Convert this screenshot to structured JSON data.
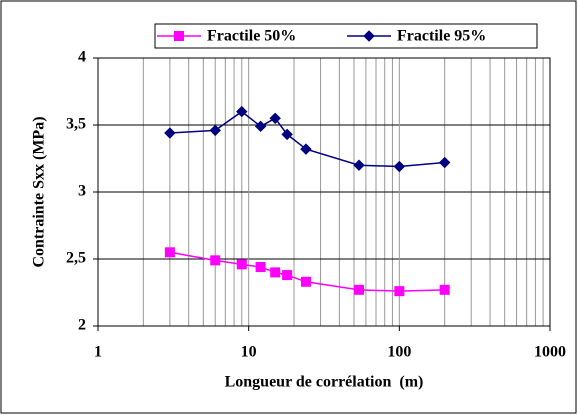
{
  "chart_data": {
    "type": "line",
    "xlabel": "Longueur de corrélation  (m)",
    "ylabel": "Contrainte Sxx (MPa)",
    "x": [
      3,
      6,
      9,
      12,
      15,
      18,
      24,
      54,
      100,
      200
    ],
    "series": [
      {
        "name": "Fractile 50%",
        "color": "#ff00ff",
        "marker": "square",
        "values": [
          2.55,
          2.49,
          2.46,
          2.44,
          2.4,
          2.38,
          2.33,
          2.27,
          2.26,
          2.27
        ]
      },
      {
        "name": "Fractile 95%",
        "color": "#000080",
        "marker": "diamond",
        "values": [
          3.44,
          3.46,
          3.6,
          3.49,
          3.55,
          3.43,
          3.32,
          3.2,
          3.19,
          3.22
        ]
      }
    ],
    "xscale": "log",
    "xlim": [
      1,
      1000
    ],
    "xticks": [
      1,
      10,
      100,
      1000
    ],
    "ylim": [
      2,
      4
    ],
    "yticks": [
      2,
      {
        "value": 2.5,
        "label": "2,5"
      },
      3,
      {
        "value": 3.5,
        "label": "3,5"
      },
      4
    ],
    "grid": true,
    "legend": "top"
  }
}
